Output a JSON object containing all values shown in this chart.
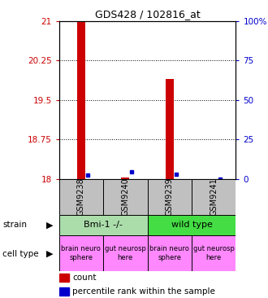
{
  "title": "GDS428 / 102816_at",
  "samples": [
    "GSM9238",
    "GSM9240",
    "GSM9239",
    "GSM9241"
  ],
  "red_bars": [
    21.0,
    18.02,
    19.9,
    18.0
  ],
  "blue_dots": [
    18.07,
    18.13,
    18.08,
    18.0
  ],
  "red_base": 18.0,
  "ylim_min": 18.0,
  "ylim_max": 21.0,
  "yticks_left": [
    18,
    18.75,
    19.5,
    20.25,
    21
  ],
  "yticks_right": [
    0,
    25,
    50,
    75,
    100
  ],
  "yticks_right_labels": [
    "0",
    "25",
    "50",
    "75",
    "100%"
  ],
  "hlines": [
    18.75,
    19.5,
    20.25
  ],
  "strain_data": [
    {
      "label": "Bmi-1 -/-",
      "start": 0,
      "end": 2,
      "color": "#AADDAA"
    },
    {
      "label": "wild type",
      "start": 2,
      "end": 4,
      "color": "#44DD44"
    }
  ],
  "cell_type_labels": [
    "brain neuro\nsphere",
    "gut neurosp\nhere",
    "brain neuro\nsphere",
    "gut neurosp\nhere"
  ],
  "cell_type_color": "#FF88FF",
  "sample_box_color": "#C0C0C0",
  "left_ytick_color": "#CC0000",
  "right_ytick_color": "#0000CC",
  "bar_color": "#CC0000",
  "dot_color": "#0000CC"
}
